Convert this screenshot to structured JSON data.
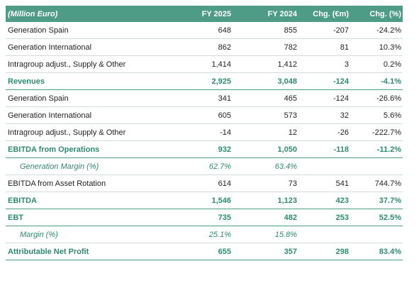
{
  "header": {
    "label": "(Million Euro)",
    "col1": "FY 2025",
    "col2": "FY 2024",
    "col3": "Chg. (€m)",
    "col4": "Chg. (%)"
  },
  "rows": [
    {
      "label": "Generation Spain",
      "v1": "648",
      "v2": "855",
      "v3": "-207",
      "v4": "-24.2%",
      "kind": "normal"
    },
    {
      "label": "Generation International",
      "v1": "862",
      "v2": "782",
      "v3": "81",
      "v4": "10.3%",
      "kind": "normal"
    },
    {
      "label": "Intragroup adjust., Supply & Other",
      "v1": "1,414",
      "v2": "1,412",
      "v3": "3",
      "v4": "0.2%",
      "kind": "normal"
    },
    {
      "label": "Revenues",
      "v1": "2,925",
      "v2": "3,048",
      "v3": "-124",
      "v4": "-4.1%",
      "kind": "total"
    },
    {
      "label": "Generation Spain",
      "v1": "341",
      "v2": "465",
      "v3": "-124",
      "v4": "-26.6%",
      "kind": "normal"
    },
    {
      "label": "Generation International",
      "v1": "605",
      "v2": "573",
      "v3": "32",
      "v4": "5.6%",
      "kind": "normal"
    },
    {
      "label": "Intragroup adjust., Supply & Other",
      "v1": "-14",
      "v2": "12",
      "v3": "-26",
      "v4": "-222.7%",
      "kind": "normal"
    },
    {
      "label": "EBITDA from Operations",
      "v1": "932",
      "v2": "1,050",
      "v3": "-118",
      "v4": "-11.2%",
      "kind": "total"
    },
    {
      "label": "Generation Margin (%)",
      "v1": "62.7%",
      "v2": "63.4%",
      "v3": "",
      "v4": "",
      "kind": "margin"
    },
    {
      "label": "EBITDA from Asset Rotation",
      "v1": "614",
      "v2": "73",
      "v3": "541",
      "v4": "744.7%",
      "kind": "normal"
    },
    {
      "label": "EBITDA",
      "v1": "1,546",
      "v2": "1,123",
      "v3": "423",
      "v4": "37.7%",
      "kind": "total"
    },
    {
      "label": "EBT",
      "v1": "735",
      "v2": "482",
      "v3": "253",
      "v4": "52.5%",
      "kind": "total"
    },
    {
      "label": "Margin (%)",
      "v1": "25.1%",
      "v2": "15.8%",
      "v3": "",
      "v4": "",
      "kind": "margin"
    },
    {
      "label": "Attributable Net Profit",
      "v1": "655",
      "v2": "357",
      "v3": "298",
      "v4": "83.4%",
      "kind": "total"
    }
  ]
}
